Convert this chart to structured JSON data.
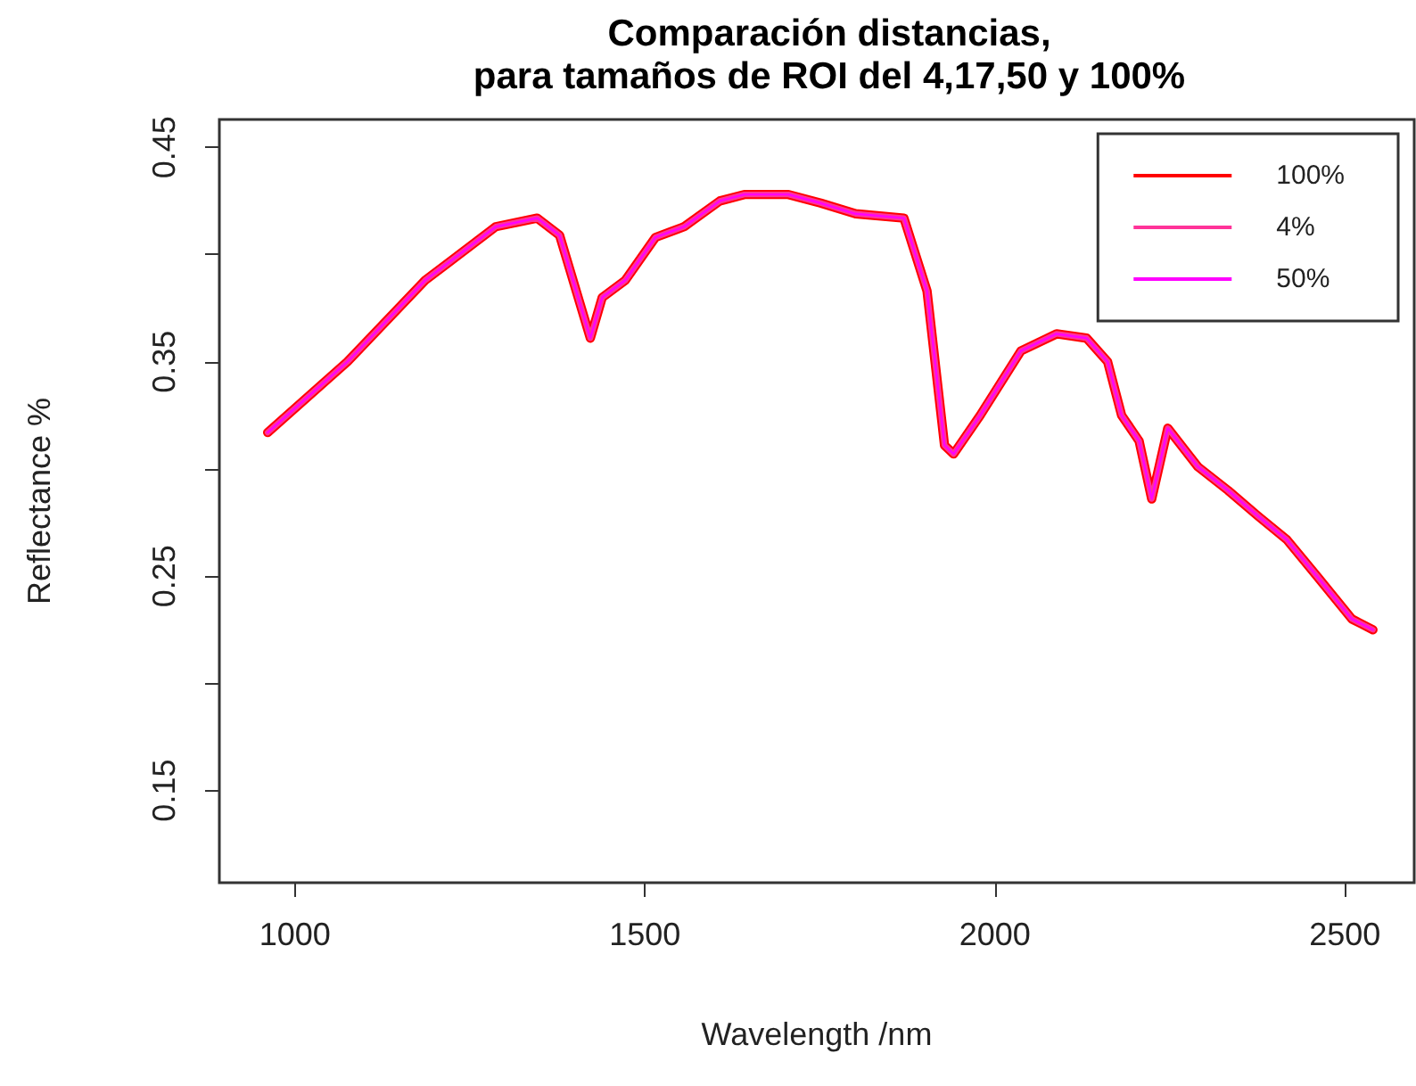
{
  "chart_data": {
    "type": "line",
    "title": "Comparación distancias,\npara tamaños de ROI del 4,17,50 y 100%",
    "xlabel": "Wavelength /nm",
    "ylabel": "Reflectance %",
    "x": [
      961,
      1075,
      1186,
      1287,
      1346,
      1378,
      1422,
      1439,
      1472,
      1515,
      1556,
      1607,
      1642,
      1705,
      1751,
      1801,
      1870,
      1903,
      1928,
      1941,
      1979,
      2037,
      2088,
      2131,
      2161,
      2181,
      2206,
      2224,
      2247,
      2290,
      2333,
      2376,
      2417,
      2460,
      2510,
      2540
    ],
    "series": [
      {
        "name": "100%",
        "color": "#ff0000",
        "values": [
          0.317,
          0.35,
          0.388,
          0.413,
          0.417,
          0.409,
          0.361,
          0.38,
          0.388,
          0.408,
          0.413,
          0.425,
          0.428,
          0.428,
          0.424,
          0.419,
          0.417,
          0.383,
          0.311,
          0.307,
          0.325,
          0.355,
          0.363,
          0.361,
          0.35,
          0.325,
          0.313,
          0.286,
          0.319,
          0.301,
          0.29,
          0.278,
          0.267,
          0.25,
          0.23,
          0.225
        ]
      },
      {
        "name": "4%",
        "color": "#ff3399",
        "values": [
          0.317,
          0.35,
          0.388,
          0.413,
          0.417,
          0.409,
          0.361,
          0.38,
          0.388,
          0.408,
          0.413,
          0.425,
          0.428,
          0.428,
          0.424,
          0.419,
          0.417,
          0.383,
          0.311,
          0.307,
          0.325,
          0.355,
          0.363,
          0.361,
          0.35,
          0.325,
          0.313,
          0.286,
          0.319,
          0.301,
          0.29,
          0.278,
          0.267,
          0.25,
          0.23,
          0.225
        ]
      },
      {
        "name": "50%",
        "color": "#ff00ff",
        "values": [
          0.317,
          0.35,
          0.388,
          0.413,
          0.417,
          0.409,
          0.361,
          0.38,
          0.388,
          0.408,
          0.413,
          0.425,
          0.428,
          0.428,
          0.424,
          0.419,
          0.417,
          0.383,
          0.311,
          0.307,
          0.325,
          0.355,
          0.363,
          0.361,
          0.35,
          0.325,
          0.313,
          0.286,
          0.319,
          0.301,
          0.29,
          0.278,
          0.267,
          0.25,
          0.23,
          0.225
        ]
      }
    ],
    "xlim": [
      892,
      2599
    ],
    "xticks": [
      1000,
      1500,
      2000,
      2500
    ],
    "ylim": [
      0.107,
      0.463
    ],
    "yticks": [
      0.45,
      {
        "value": 0.4,
        "label": null
      },
      0.35,
      {
        "value": 0.3,
        "label": null
      },
      0.25,
      {
        "value": 0.2,
        "label": null
      },
      0.15
    ],
    "legend": "top right",
    "grid": false,
    "marker": "none",
    "line_style": "solid"
  }
}
